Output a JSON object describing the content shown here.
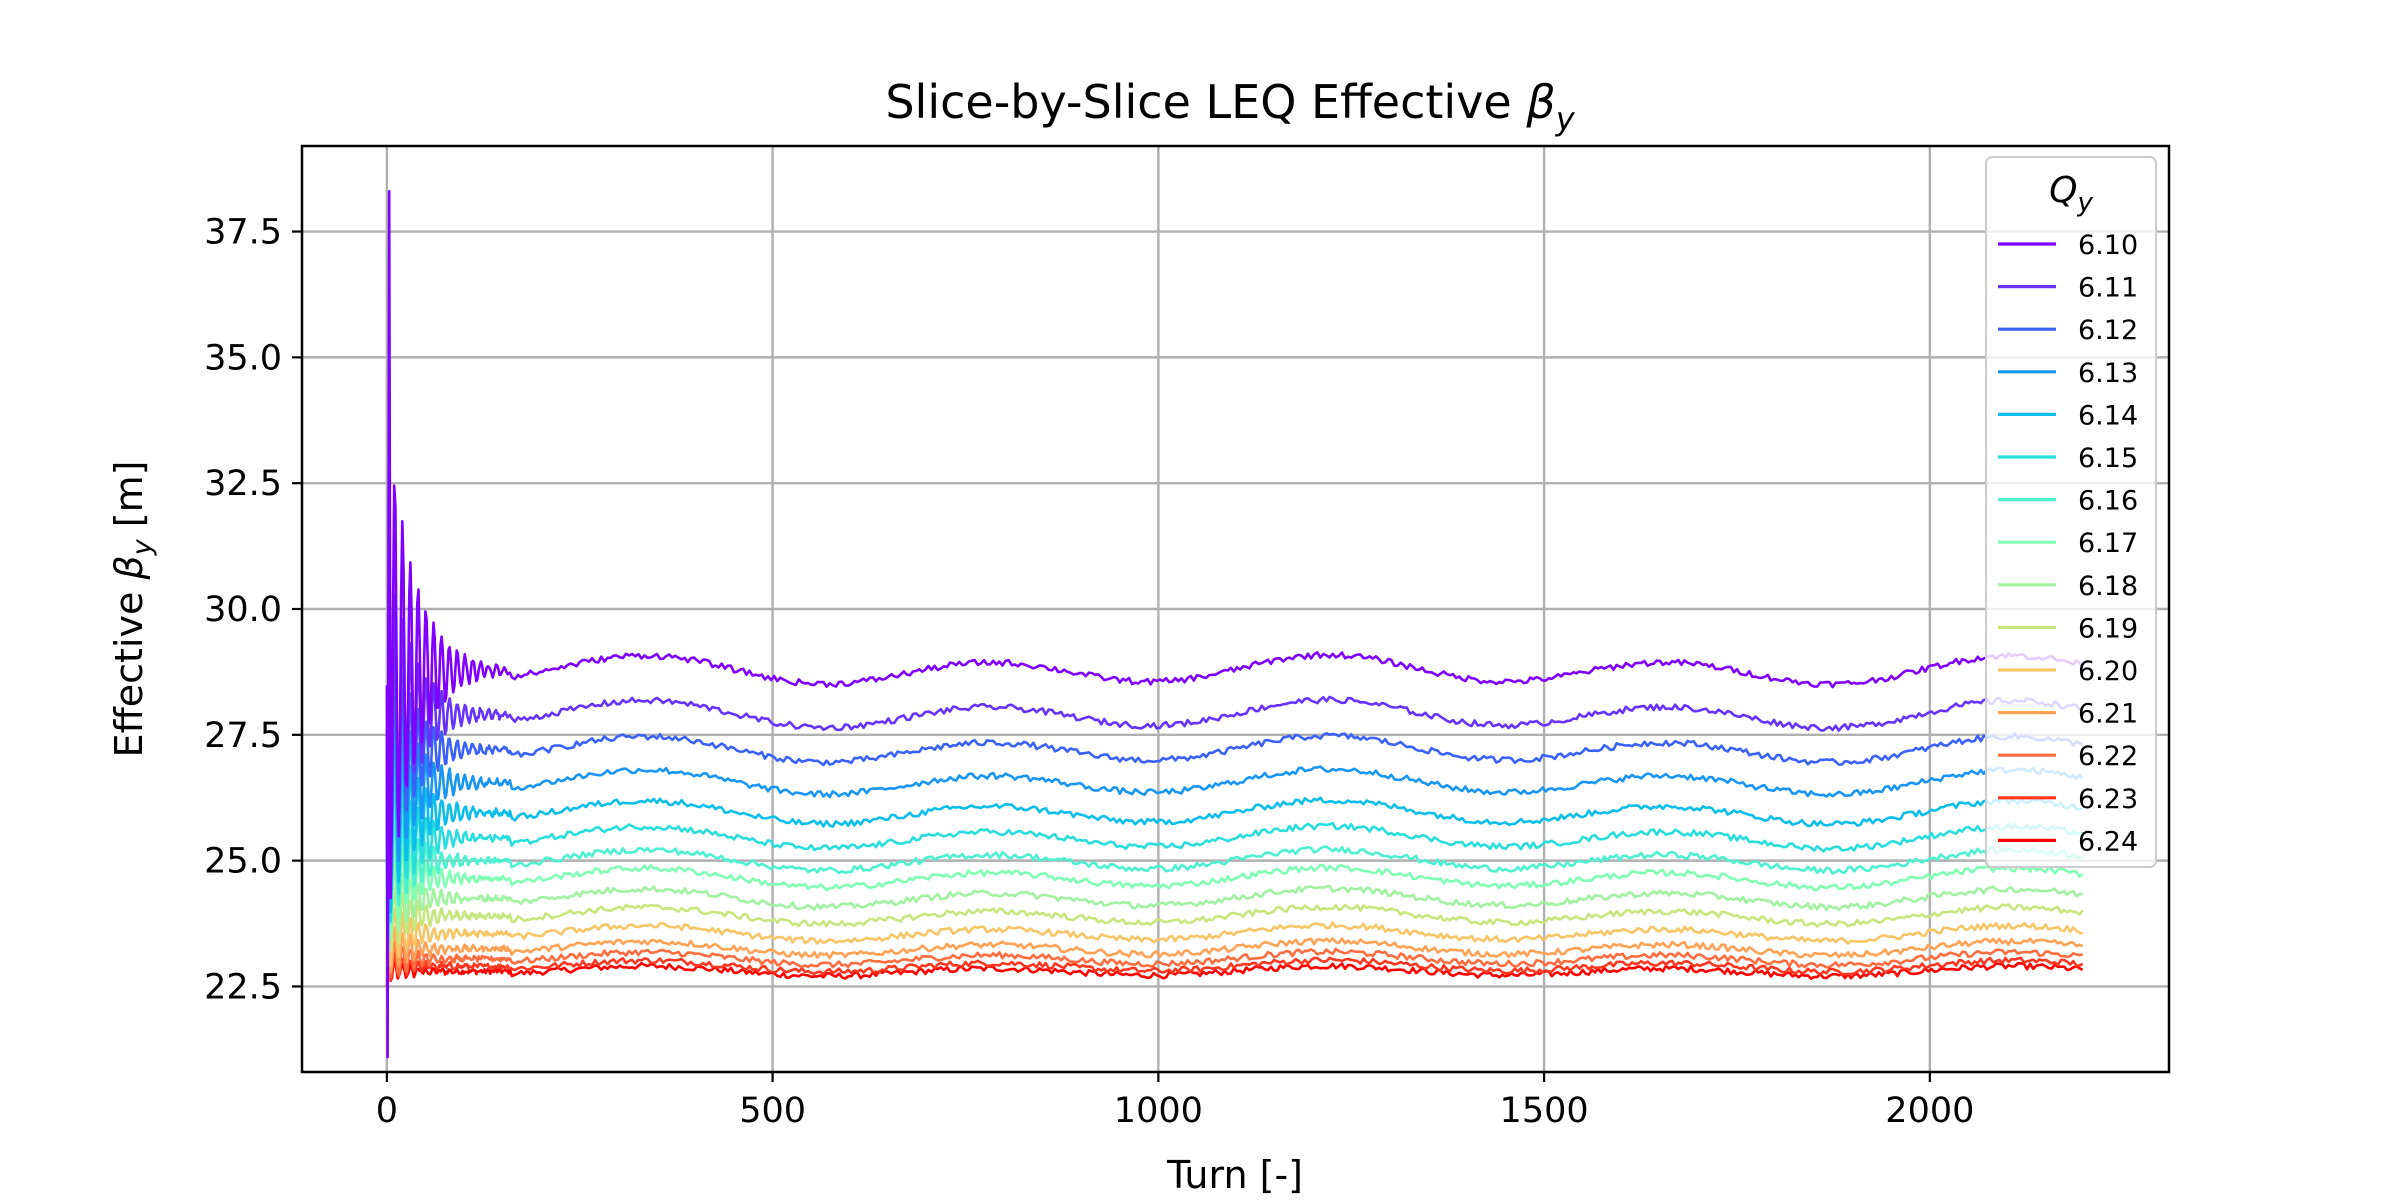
{
  "chart_data": {
    "type": "line",
    "title": "Slice-by-Slice LEQ Effective",
    "title_symbol": "β",
    "title_symbol_sub": "y",
    "xlabel": "Turn [-]",
    "ylabel_prefix": "Effective ",
    "ylabel_symbol": "β",
    "ylabel_symbol_sub": "y",
    "ylabel_suffix": " [m]",
    "xlim": [
      -110,
      2310
    ],
    "ylim": [
      20.8,
      39.2
    ],
    "xticks": [
      0,
      500,
      1000,
      1500,
      2000
    ],
    "xtick_labels": [
      "0",
      "500",
      "1000",
      "1500",
      "2000"
    ],
    "yticks": [
      22.5,
      25.0,
      27.5,
      30.0,
      32.5,
      35.0,
      37.5
    ],
    "ytick_labels": [
      "22.5",
      "25.0",
      "27.5",
      "30.0",
      "32.5",
      "35.0",
      "37.5"
    ],
    "grid": true,
    "x_end": 2200,
    "legend": {
      "title": "Q",
      "title_sub": "y",
      "placement": "upper-right"
    },
    "series": [
      {
        "name": "6.10",
        "color": "#8000ff",
        "plateau": 28.78,
        "peak": 38.3,
        "dip": 21.1
      },
      {
        "name": "6.11",
        "color": "#6633fd",
        "plateau": 27.9,
        "peak": 34.0,
        "dip": 23.0
      },
      {
        "name": "6.12",
        "color": "#3a62f8",
        "plateau": 27.2,
        "peak": 32.0,
        "dip": 22.4
      },
      {
        "name": "6.13",
        "color": "#1996f3",
        "plateau": 26.55,
        "peak": 31.0,
        "dip": 22.8
      },
      {
        "name": "6.14",
        "color": "#0cbee9",
        "plateau": 25.95,
        "peak": 30.0,
        "dip": 22.6
      },
      {
        "name": "6.15",
        "color": "#2adddd",
        "plateau": 25.45,
        "peak": 28.8,
        "dip": 22.9
      },
      {
        "name": "6.16",
        "color": "#4df1d0",
        "plateau": 25.0,
        "peak": 27.6,
        "dip": 22.9
      },
      {
        "name": "6.17",
        "color": "#80ffb4",
        "plateau": 24.65,
        "peak": 26.8,
        "dip": 23.0
      },
      {
        "name": "6.18",
        "color": "#a0f2a0",
        "plateau": 24.25,
        "peak": 26.0,
        "dip": 23.0
      },
      {
        "name": "6.19",
        "color": "#c8e57e",
        "plateau": 23.9,
        "peak": 25.4,
        "dip": 23.0
      },
      {
        "name": "6.20",
        "color": "#f6c566",
        "plateau": 23.55,
        "peak": 24.8,
        "dip": 23.0
      },
      {
        "name": "6.21",
        "color": "#ffa256",
        "plateau": 23.25,
        "peak": 24.3,
        "dip": 23.0
      },
      {
        "name": "6.22",
        "color": "#ff6d3f",
        "plateau": 23.05,
        "peak": 23.9,
        "dip": 22.9
      },
      {
        "name": "6.23",
        "color": "#ff3720",
        "plateau": 22.9,
        "peak": 23.5,
        "dip": 22.8
      },
      {
        "name": "6.24",
        "color": "#ff0000",
        "plateau": 22.8,
        "peak": 23.2,
        "dip": 22.7
      }
    ]
  }
}
